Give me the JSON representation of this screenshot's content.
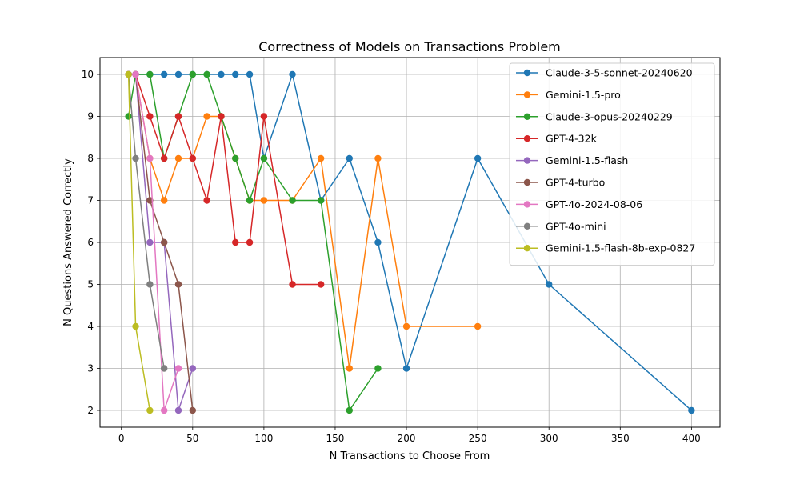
{
  "chart_data": {
    "type": "line",
    "title": "Correctness of Models on Transactions Problem",
    "xlabel": "N Transactions to Choose From",
    "ylabel": "N Questions Answered Correctly",
    "xlim": [
      -15,
      420
    ],
    "ylim": [
      1.6,
      10.4
    ],
    "xticks": [
      0,
      50,
      100,
      150,
      200,
      250,
      300,
      350,
      400
    ],
    "yticks": [
      2,
      3,
      4,
      5,
      6,
      7,
      8,
      9,
      10
    ],
    "grid": true,
    "legend_position": "top-right",
    "series": [
      {
        "name": "Claude-3-5-sonnet-20240620",
        "color": "#1f77b4",
        "x": [
          5,
          10,
          20,
          30,
          40,
          50,
          60,
          70,
          80,
          90,
          100,
          120,
          140,
          160,
          180,
          200,
          250,
          300,
          400
        ],
        "y": [
          10,
          10,
          10,
          10,
          10,
          10,
          10,
          10,
          10,
          10,
          8,
          10,
          7,
          8,
          6,
          3,
          8,
          5,
          2
        ]
      },
      {
        "name": "Gemini-1.5-pro",
        "color": "#ff7f0e",
        "x": [
          5,
          10,
          20,
          30,
          40,
          50,
          60,
          70,
          80,
          90,
          100,
          120,
          140,
          160,
          180,
          200,
          250
        ],
        "y": [
          10,
          10,
          8,
          7,
          8,
          8,
          9,
          9,
          8,
          7,
          7,
          7,
          8,
          3,
          8,
          4,
          4
        ]
      },
      {
        "name": "Claude-3-opus-20240229",
        "color": "#2ca02c",
        "x": [
          5,
          10,
          20,
          30,
          40,
          50,
          60,
          70,
          80,
          90,
          100,
          120,
          140,
          160,
          180
        ],
        "y": [
          9,
          10,
          10,
          8,
          9,
          10,
          10,
          9,
          8,
          7,
          8,
          7,
          7,
          2,
          3
        ]
      },
      {
        "name": "GPT-4-32k",
        "color": "#d62728",
        "x": [
          5,
          10,
          20,
          30,
          40,
          50,
          60,
          70,
          80,
          90,
          100,
          120,
          140
        ],
        "y": [
          10,
          10,
          9,
          8,
          9,
          8,
          7,
          9,
          6,
          6,
          9,
          5,
          5
        ]
      },
      {
        "name": "Gemini-1.5-flash",
        "color": "#9467bd",
        "x": [
          5,
          10,
          20,
          30,
          40,
          50
        ],
        "y": [
          10,
          10,
          6,
          6,
          2,
          3
        ]
      },
      {
        "name": "GPT-4-turbo",
        "color": "#8c564b",
        "x": [
          5,
          10,
          20,
          30,
          40,
          50
        ],
        "y": [
          10,
          10,
          7,
          6,
          5,
          2
        ]
      },
      {
        "name": "GPT-4o-2024-08-06",
        "color": "#e377c2",
        "x": [
          5,
          10,
          20,
          30,
          40
        ],
        "y": [
          10,
          10,
          8,
          2,
          3
        ]
      },
      {
        "name": "GPT-4o-mini",
        "color": "#7f7f7f",
        "x": [
          5,
          10,
          20,
          30
        ],
        "y": [
          10,
          8,
          5,
          3
        ]
      },
      {
        "name": "Gemini-1.5-flash-8b-exp-0827",
        "color": "#bcbd22",
        "x": [
          5,
          10,
          20
        ],
        "y": [
          10,
          4,
          2
        ]
      }
    ]
  }
}
